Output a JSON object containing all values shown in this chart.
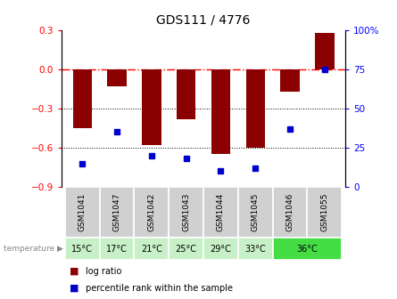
{
  "title": "GDS111 / 4776",
  "samples": [
    "GSM1041",
    "GSM1047",
    "GSM1042",
    "GSM1043",
    "GSM1044",
    "GSM1045",
    "GSM1046",
    "GSM1055"
  ],
  "temperatures": [
    "15°C",
    "17°C",
    "21°C",
    "25°C",
    "29°C",
    "33°C",
    "36°C"
  ],
  "temp_groups": [
    1,
    1,
    1,
    1,
    1,
    1,
    2
  ],
  "temp_spans": [
    1,
    1,
    1,
    1,
    1,
    1,
    2
  ],
  "log_ratios": [
    -0.45,
    -0.13,
    -0.58,
    -0.38,
    -0.65,
    -0.6,
    -0.17,
    0.28
  ],
  "percentile_ranks": [
    15,
    35,
    20,
    18,
    10,
    12,
    37,
    75
  ],
  "ylim_left": [
    -0.9,
    0.3
  ],
  "ylim_right": [
    0,
    100
  ],
  "yticks_left": [
    0.3,
    0.0,
    -0.3,
    -0.6,
    -0.9
  ],
  "yticks_right": [
    100,
    75,
    50,
    25,
    0
  ],
  "bar_color": "#8B0000",
  "dot_color": "#0000CD",
  "background_color": "#ffffff",
  "temp_color_normal": "#c8f0c8",
  "temp_color_highlight": "#44dd44",
  "sample_bg_color": "#d0d0d0",
  "legend_bar_label": "log ratio",
  "legend_dot_label": "percentile rank within the sample",
  "temperature_label": "temperature"
}
